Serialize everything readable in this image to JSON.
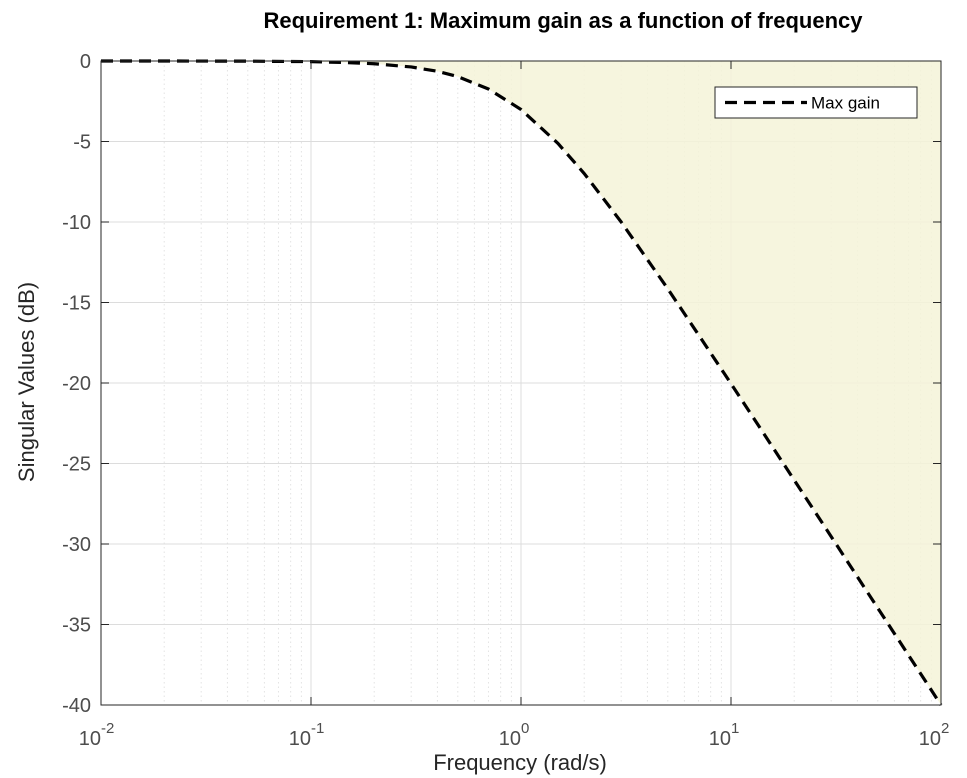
{
  "chart_data": {
    "type": "area",
    "title": "Requirement 1: Maximum gain as a function of frequency",
    "xlabel": "Frequency (rad/s)",
    "ylabel": "Singular Values (dB)",
    "xscale": "log",
    "xlim": [
      0.01,
      100
    ],
    "ylim": [
      -40,
      0
    ],
    "xticks": [
      {
        "value": 0.01,
        "base": "10",
        "exp": "-2"
      },
      {
        "value": 0.1,
        "base": "10",
        "exp": "-1"
      },
      {
        "value": 1,
        "base": "10",
        "exp": "0"
      },
      {
        "value": 10,
        "base": "10",
        "exp": "1"
      },
      {
        "value": 100,
        "base": "10",
        "exp": "2"
      }
    ],
    "yticks": [
      {
        "value": 0,
        "label": "0"
      },
      {
        "value": -5,
        "label": "-5"
      },
      {
        "value": -10,
        "label": "-10"
      },
      {
        "value": -15,
        "label": "-15"
      },
      {
        "value": -20,
        "label": "-20"
      },
      {
        "value": -25,
        "label": "-25"
      },
      {
        "value": -30,
        "label": "-30"
      },
      {
        "value": -35,
        "label": "-35"
      },
      {
        "value": -40,
        "label": "-40"
      }
    ],
    "grid": true,
    "minor_grid": true,
    "legend_location": "top-right",
    "series": [
      {
        "name": "Max gain",
        "style": "dashed",
        "color": "#000000",
        "x": [
          0.01,
          0.02,
          0.05,
          0.1,
          0.15,
          0.2,
          0.3,
          0.4,
          0.5,
          0.7,
          1,
          1.5,
          2,
          3,
          5,
          7,
          10,
          20,
          30,
          50,
          70,
          100
        ],
        "y": [
          0,
          0,
          -0.01,
          -0.04,
          -0.1,
          -0.17,
          -0.37,
          -0.64,
          -0.97,
          -1.74,
          -3.01,
          -5.12,
          -6.99,
          -10.0,
          -14.15,
          -17.0,
          -20.04,
          -26.03,
          -29.54,
          -33.98,
          -36.9,
          -40.0
        ]
      }
    ],
    "shaded_region": {
      "description_visible": false,
      "fill_color": "#f5f3d8",
      "bound": "above Max gain curve"
    }
  }
}
